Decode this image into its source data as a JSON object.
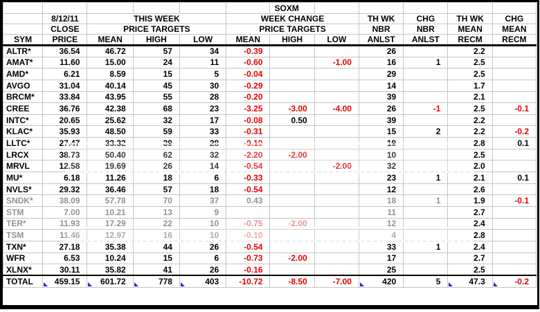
{
  "title": "SOXM",
  "colors": {
    "negative_red": "#e60000",
    "dim_gray": "#929292",
    "dim_red": "#e9928e",
    "gridline": "#c4c4c4",
    "heavy_border": "#000000",
    "smart_tag_blue": "#2626cf",
    "background": "#ffffff"
  },
  "header": {
    "r1": {
      "title": "SOXM"
    },
    "r2": {
      "date": "8/12/11",
      "this_week": "THIS WEEK",
      "week_change": "WEEK CHANGE",
      "th_wk_1": "TH WK",
      "chg_1": "CHG",
      "th_wk_2": "TH WK",
      "chg_2": "CHG"
    },
    "r3": {
      "close": "CLOSE",
      "price_targets_1": "PRICE TARGETS",
      "price_targets_2": "PRICE TARGETS",
      "nbr_1": "NBR",
      "nbr_2": "NBR",
      "mean_1": "MEAN",
      "mean_2": "MEAN"
    },
    "r4": {
      "sym": "SYM",
      "price": "PRICE",
      "mean": "MEAN",
      "high": "HIGH",
      "low": "LOW",
      "mean_c": "MEAN",
      "high_c": "HIGH",
      "low_c": "LOW",
      "anlst_1": "ANLST",
      "anlst_2": "ANLST",
      "recm_1": "RECM",
      "recm_2": "RECM"
    }
  },
  "columns": [
    "sym",
    "close",
    "mean",
    "high",
    "low",
    "mean_chg",
    "high_chg",
    "low_chg",
    "anlst",
    "chg_nbr",
    "recm",
    "chg_recm"
  ],
  "rows": [
    {
      "sym": "ALTR*",
      "close": "36.54",
      "mean": "46.72",
      "high": "57",
      "low": "34",
      "mean_chg": "-0.39",
      "high_chg": "",
      "low_chg": "",
      "anlst": "26",
      "chg_nbr": "",
      "recm": "2.2",
      "chg_recm": "",
      "dim": false
    },
    {
      "sym": "AMAT*",
      "close": "11.60",
      "mean": "15.00",
      "high": "24",
      "low": "11",
      "mean_chg": "-0.60",
      "high_chg": "",
      "low_chg": "-1.00",
      "anlst": "16",
      "chg_nbr": "1",
      "recm": "2.5",
      "chg_recm": "",
      "dim": false
    },
    {
      "sym": "AMD*",
      "close": "6.21",
      "mean": "8.59",
      "high": "15",
      "low": "5",
      "mean_chg": "-0.04",
      "high_chg": "",
      "low_chg": "",
      "anlst": "29",
      "chg_nbr": "",
      "recm": "2.5",
      "chg_recm": "",
      "dim": false
    },
    {
      "sym": "AVGO",
      "close": "31.04",
      "mean": "40.14",
      "high": "45",
      "low": "30",
      "mean_chg": "-0.29",
      "high_chg": "",
      "low_chg": "",
      "anlst": "14",
      "chg_nbr": "",
      "recm": "1.7",
      "chg_recm": "",
      "dim": false
    },
    {
      "sym": "BRCM*",
      "close": "33.84",
      "mean": "43.95",
      "high": "55",
      "low": "28",
      "mean_chg": "-0.20",
      "high_chg": "",
      "low_chg": "",
      "anlst": "39",
      "chg_nbr": "",
      "recm": "2.1",
      "chg_recm": "",
      "dim": false
    },
    {
      "sym": "CREE",
      "close": "36.76",
      "mean": "42.38",
      "high": "68",
      "low": "23",
      "mean_chg": "-3.25",
      "high_chg": "-3.00",
      "low_chg": "-4.00",
      "anlst": "26",
      "chg_nbr": "-1",
      "recm": "2.5",
      "chg_recm": "-0.1",
      "dim": false
    },
    {
      "sym": "INTC*",
      "close": "20.65",
      "mean": "25.62",
      "high": "32",
      "low": "17",
      "mean_chg": "-0.08",
      "high_chg": "0.50",
      "low_chg": "",
      "anlst": "39",
      "chg_nbr": "",
      "recm": "2.2",
      "chg_recm": "",
      "dim": false
    },
    {
      "sym": "KLAC*",
      "close": "35.93",
      "mean": "48.50",
      "high": "59",
      "low": "33",
      "mean_chg": "-0.31",
      "high_chg": "",
      "low_chg": "",
      "anlst": "15",
      "chg_nbr": "2",
      "recm": "2.2",
      "chg_recm": "-0.2",
      "dim": false
    },
    {
      "sym": "LLTC*",
      "close": "27.47",
      "mean": "33.32",
      "high": "39",
      "low": "28",
      "mean_chg": "-0.10",
      "high_chg": "",
      "low_chg": "",
      "anlst": "19",
      "chg_nbr": "",
      "recm": "2.8",
      "chg_recm": "0.1",
      "dim": false
    },
    {
      "sym": "LRCX",
      "close": "38.73",
      "mean": "50.40",
      "high": "62",
      "low": "32",
      "mean_chg": "-2.20",
      "high_chg": "-2.00",
      "low_chg": "",
      "anlst": "10",
      "chg_nbr": "",
      "recm": "2.5",
      "chg_recm": "",
      "dim": false
    },
    {
      "sym": "MRVL",
      "close": "12.58",
      "mean": "19.69",
      "high": "26",
      "low": "14",
      "mean_chg": "-0.54",
      "high_chg": "",
      "low_chg": "-2.00",
      "anlst": "32",
      "chg_nbr": "",
      "recm": "2.0",
      "chg_recm": "",
      "dim": false
    },
    {
      "sym": "MU*",
      "close": "6.18",
      "mean": "11.26",
      "high": "18",
      "low": "6",
      "mean_chg": "-0.33",
      "high_chg": "",
      "low_chg": "",
      "anlst": "23",
      "chg_nbr": "1",
      "recm": "2.1",
      "chg_recm": "0.1",
      "dim": false
    },
    {
      "sym": "NVLS*",
      "close": "29.32",
      "mean": "36.46",
      "high": "57",
      "low": "18",
      "mean_chg": "-0.54",
      "high_chg": "",
      "low_chg": "",
      "anlst": "12",
      "chg_nbr": "",
      "recm": "2.6",
      "chg_recm": "",
      "dim": false
    },
    {
      "sym": "SNDK*",
      "close": "38.09",
      "mean": "57.78",
      "high": "70",
      "low": "37",
      "mean_chg": "0.43",
      "high_chg": "",
      "low_chg": "",
      "anlst": "18",
      "chg_nbr": "1",
      "recm": "1.9",
      "chg_recm": "-0.1",
      "dim": true
    },
    {
      "sym": "STM",
      "close": "7.00",
      "mean": "10.21",
      "high": "13",
      "low": "9",
      "mean_chg": "",
      "high_chg": "",
      "low_chg": "",
      "anlst": "11",
      "chg_nbr": "",
      "recm": "2.7",
      "chg_recm": "",
      "dim": true
    },
    {
      "sym": "TER*",
      "close": "11.93",
      "mean": "17.29",
      "high": "22",
      "low": "10",
      "mean_chg": "-0.75",
      "high_chg": "-2.00",
      "low_chg": "",
      "anlst": "12",
      "chg_nbr": "",
      "recm": "2.4",
      "chg_recm": "",
      "dim": true
    },
    {
      "sym": "TSM",
      "close": "11.46",
      "mean": "12.97",
      "high": "16",
      "low": "10",
      "mean_chg": "-0.10",
      "high_chg": "",
      "low_chg": "",
      "anlst": "4",
      "chg_nbr": "",
      "recm": "2.8",
      "chg_recm": "",
      "dim": true
    },
    {
      "sym": "TXN*",
      "close": "27.18",
      "mean": "35.38",
      "high": "44",
      "low": "26",
      "mean_chg": "-0.54",
      "high_chg": "",
      "low_chg": "",
      "anlst": "33",
      "chg_nbr": "1",
      "recm": "2.4",
      "chg_recm": "",
      "dim": false
    },
    {
      "sym": "WFR",
      "close": "6.53",
      "mean": "10.24",
      "high": "15",
      "low": "6",
      "mean_chg": "-0.73",
      "high_chg": "-2.00",
      "low_chg": "",
      "anlst": "17",
      "chg_nbr": "",
      "recm": "2.7",
      "chg_recm": "",
      "dim": false
    },
    {
      "sym": "XLNX*",
      "close": "30.11",
      "mean": "35.82",
      "high": "41",
      "low": "26",
      "mean_chg": "-0.16",
      "high_chg": "",
      "low_chg": "",
      "anlst": "25",
      "chg_nbr": "",
      "recm": "2.5",
      "chg_recm": "",
      "dim": false
    }
  ],
  "total": {
    "sym": "TOTAL",
    "close": "459.15",
    "mean": "601.72",
    "high": "778",
    "low": "403",
    "mean_chg": "-10.72",
    "high_chg": "-8.50",
    "low_chg": "-7.00",
    "anlst": "420",
    "chg_nbr": "5",
    "recm": "47.3",
    "chg_recm": "-0.2",
    "dim": false
  },
  "total_markers": [
    "close",
    "mean",
    "high",
    "low",
    "anlst",
    "recm",
    "chg_recm"
  ]
}
